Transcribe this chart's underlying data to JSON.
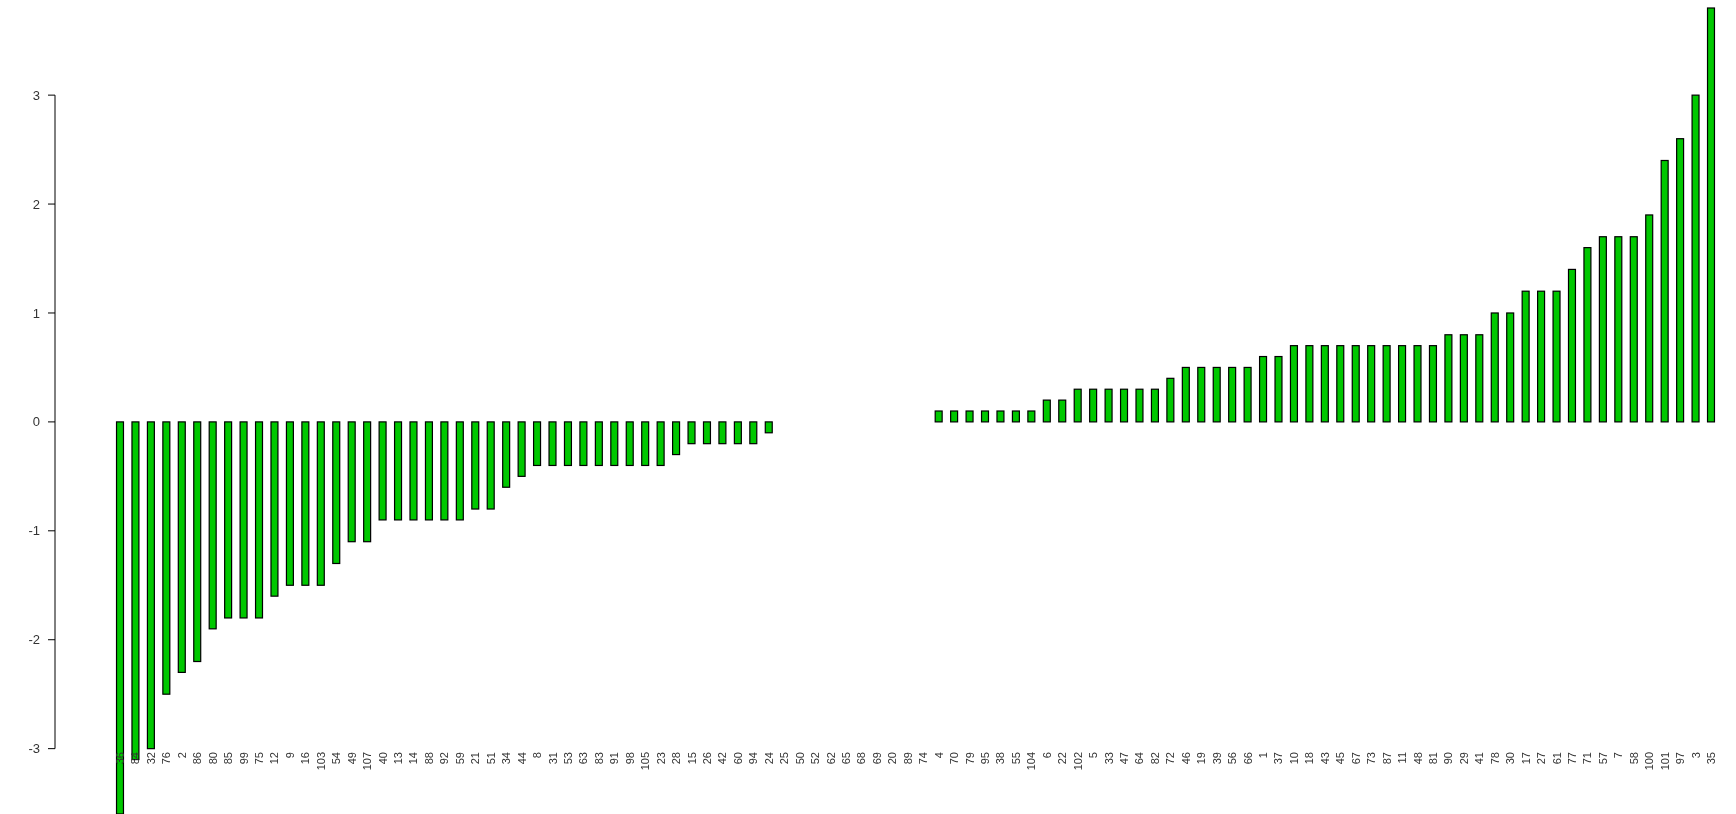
{
  "chart_data": {
    "type": "bar",
    "categories": [
      "36",
      "84",
      "32",
      "76",
      "2",
      "86",
      "80",
      "85",
      "99",
      "75",
      "12",
      "9",
      "16",
      "103",
      "54",
      "49",
      "107",
      "40",
      "13",
      "14",
      "88",
      "92",
      "59",
      "21",
      "51",
      "34",
      "44",
      "8",
      "31",
      "53",
      "63",
      "83",
      "91",
      "98",
      "105",
      "23",
      "28",
      "15",
      "26",
      "42",
      "60",
      "94",
      "24",
      "25",
      "50",
      "52",
      "62",
      "65",
      "68",
      "69",
      "20",
      "89",
      "74",
      "4",
      "70",
      "79",
      "95",
      "38",
      "55",
      "104",
      "6",
      "22",
      "102",
      "5",
      "33",
      "47",
      "64",
      "82",
      "72",
      "46",
      "19",
      "39",
      "56",
      "66",
      "1",
      "37",
      "10",
      "18",
      "43",
      "45",
      "67",
      "73",
      "87",
      "11",
      "48",
      "81",
      "90",
      "29",
      "41",
      "78",
      "30",
      "17",
      "27",
      "61",
      "77",
      "71",
      "57",
      "7",
      "58",
      "100",
      "101",
      "97",
      "3",
      "35"
    ],
    "values": [
      -3.6,
      -3.1,
      -3.0,
      -2.5,
      -2.3,
      -2.2,
      -1.9,
      -1.8,
      -1.8,
      -1.8,
      -1.6,
      -1.5,
      -1.5,
      -1.5,
      -1.3,
      -1.1,
      -1.1,
      -0.9,
      -0.9,
      -0.9,
      -0.9,
      -0.9,
      -0.9,
      -0.8,
      -0.8,
      -0.6,
      -0.5,
      -0.4,
      -0.4,
      -0.4,
      -0.4,
      -0.4,
      -0.4,
      -0.4,
      -0.4,
      -0.4,
      -0.3,
      -0.2,
      -0.2,
      -0.2,
      -0.2,
      -0.2,
      -0.1,
      0,
      0,
      0,
      0,
      0,
      0,
      0,
      0,
      0,
      0,
      0.1,
      0.1,
      0.1,
      0.1,
      0.1,
      0.1,
      0.1,
      0.2,
      0.2,
      0.3,
      0.3,
      0.3,
      0.3,
      0.3,
      0.3,
      0.4,
      0.5,
      0.5,
      0.5,
      0.5,
      0.5,
      0.6,
      0.6,
      0.7,
      0.7,
      0.7,
      0.7,
      0.7,
      0.7,
      0.7,
      0.7,
      0.7,
      0.7,
      0.8,
      0.8,
      0.8,
      1.0,
      1.0,
      1.2,
      1.2,
      1.2,
      1.4,
      1.6,
      1.7,
      1.7,
      1.7,
      1.9,
      2.4,
      2.6,
      3.0,
      3.8
    ],
    "color": "#00c800",
    "ylim": [
      -3.6,
      3.8
    ],
    "yticks": [
      -3,
      -2,
      -1,
      0,
      1,
      2,
      3
    ]
  }
}
